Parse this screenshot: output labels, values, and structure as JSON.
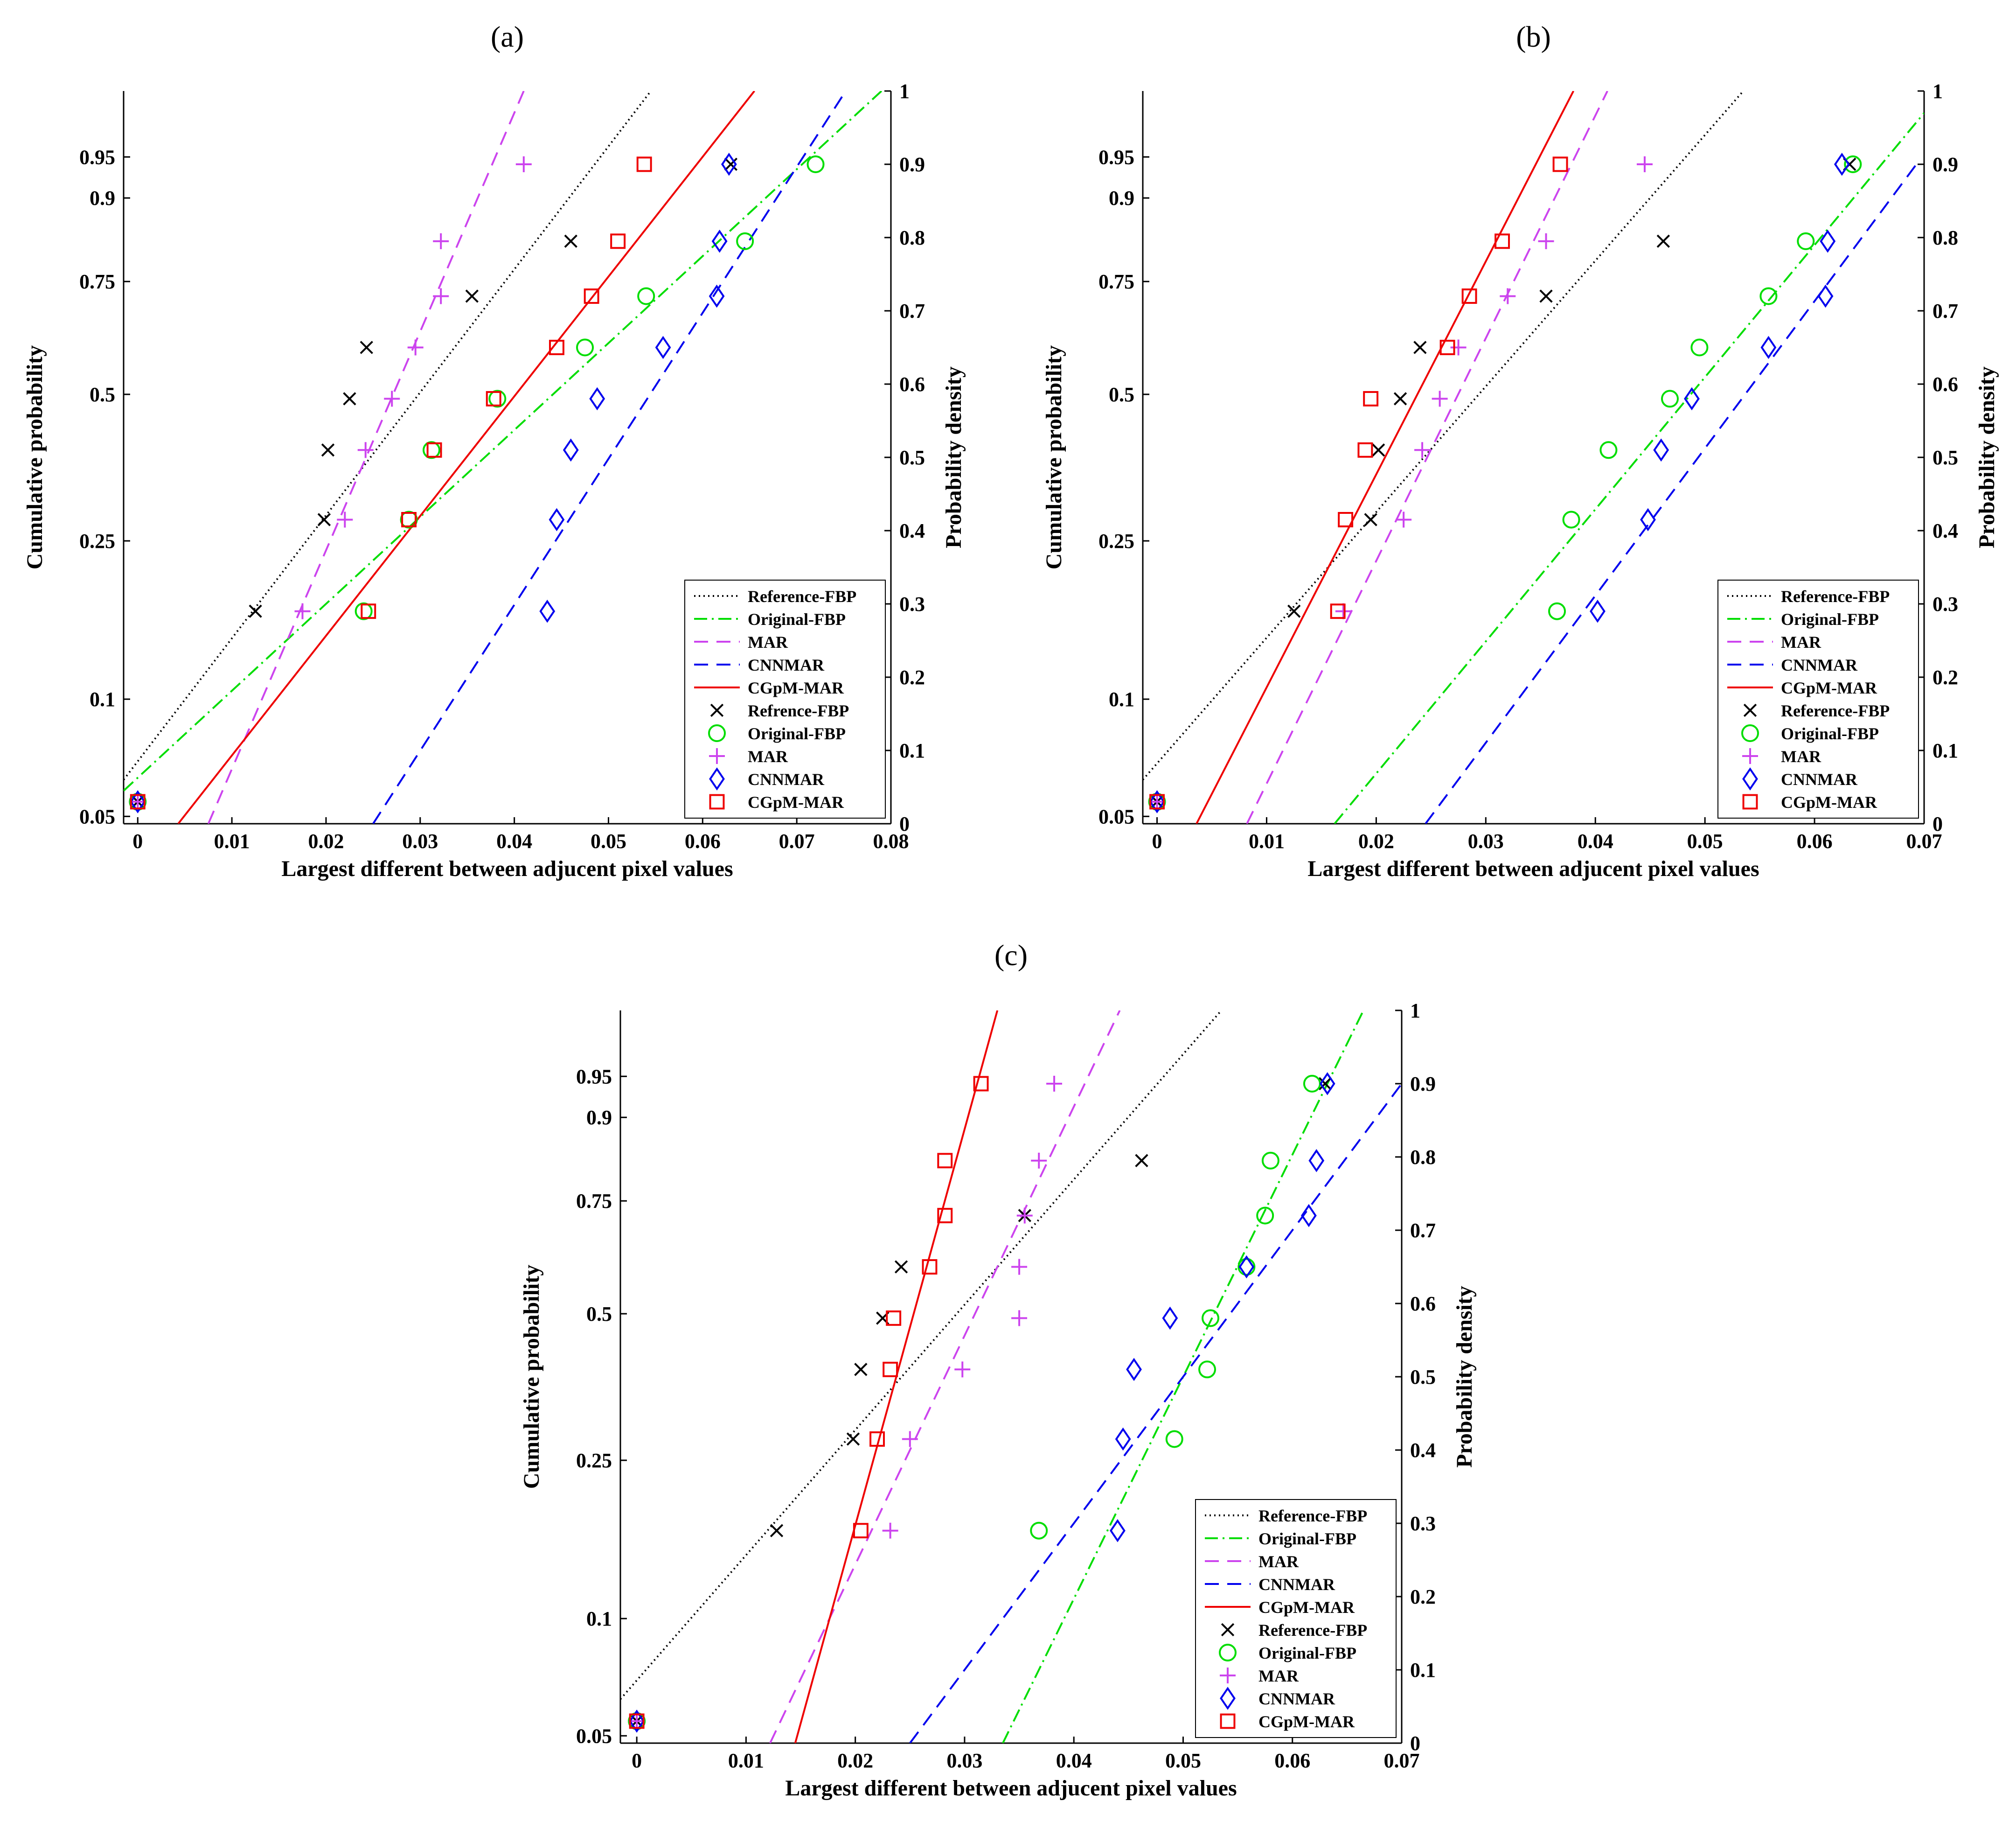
{
  "chart_data": [
    {
      "type": "scatter",
      "title": "(a)",
      "xlabel": "Largest different between adjucent pixel values",
      "ylabel_left": "Cumulative probability",
      "ylabel_right": "Probability density",
      "xlim": [
        -0.0015,
        0.08
      ],
      "x_ticks": [
        "0",
        "0.01",
        "0.02",
        "0.03",
        "0.04",
        "0.05",
        "0.06",
        "0.07",
        "0.08"
      ],
      "left_ticks": [
        "0.05",
        "0.1",
        "0.25",
        "0.5",
        "0.75",
        "0.9",
        "0.95"
      ],
      "right_ticks": [
        "0",
        "0.1",
        "0.2",
        "0.3",
        "0.4",
        "0.5",
        "0.6",
        "0.7",
        "0.8",
        "0.9",
        "1"
      ],
      "legend_position": "bottom-right",
      "fit_lines": [
        {
          "name": "Reference-FBP",
          "style": "dotted",
          "color": "#000000",
          "points": [
            [
              -0.0015,
              0.06
            ],
            [
              0.0545,
              1.0
            ]
          ]
        },
        {
          "name": "Original-FBP",
          "style": "dashdot",
          "color": "#00dd00",
          "points": [
            [
              -0.0015,
              0.045
            ],
            [
              0.079,
              1.0
            ]
          ]
        },
        {
          "name": "MAR",
          "style": "dashed",
          "color": "#cc44ee",
          "points": [
            [
              0.0075,
              0.0
            ],
            [
              0.041,
              1.0
            ]
          ]
        },
        {
          "name": "CNNMAR",
          "style": "dashed",
          "color": "#0000ee",
          "points": [
            [
              0.025,
              0.0
            ],
            [
              0.0752,
              1.0
            ]
          ]
        },
        {
          "name": "CGpM-MAR",
          "style": "solid",
          "color": "#ee0000",
          "points": [
            [
              0.0043,
              0.0
            ],
            [
              0.0655,
              1.0
            ]
          ]
        }
      ],
      "points": [
        {
          "name": "Refrence-FBP",
          "marker": "x",
          "color": "#000000",
          "x": [
            0,
            0.0125,
            0.0198,
            0.0202,
            0.0225,
            0.0243,
            0.0355,
            0.046,
            0.063
          ],
          "y": [
            0.03,
            0.29,
            0.415,
            0.51,
            0.58,
            0.65,
            0.72,
            0.795,
            0.9
          ]
        },
        {
          "name": "Original-FBP",
          "marker": "o",
          "color": "#00dd00",
          "x": [
            0,
            0.024,
            0.0288,
            0.0312,
            0.0382,
            0.0475,
            0.054,
            0.0645,
            0.072
          ],
          "y": [
            0.03,
            0.29,
            0.415,
            0.51,
            0.58,
            0.65,
            0.72,
            0.795,
            0.9
          ]
        },
        {
          "name": "MAR",
          "marker": "+",
          "color": "#cc44ee",
          "x": [
            0,
            0.0175,
            0.022,
            0.0242,
            0.027,
            0.0295,
            0.0322,
            0.0322,
            0.041
          ],
          "y": [
            0.03,
            0.29,
            0.415,
            0.51,
            0.58,
            0.65,
            0.72,
            0.795,
            0.9
          ]
        },
        {
          "name": "CNNMAR",
          "marker": "diamond",
          "color": "#0000ee",
          "x": [
            0,
            0.0435,
            0.0445,
            0.046,
            0.0488,
            0.0558,
            0.0615,
            0.0618,
            0.0628
          ],
          "y": [
            0.03,
            0.29,
            0.415,
            0.51,
            0.58,
            0.65,
            0.72,
            0.795,
            0.9
          ]
        },
        {
          "name": "CGpM-MAR",
          "marker": "square",
          "color": "#ee0000",
          "x": [
            0,
            0.0245,
            0.0288,
            0.0315,
            0.0378,
            0.0445,
            0.0482,
            0.051,
            0.0538
          ],
          "y": [
            0.03,
            0.29,
            0.415,
            0.51,
            0.58,
            0.65,
            0.72,
            0.795,
            0.9
          ]
        }
      ]
    },
    {
      "type": "scatter",
      "title": "(b)",
      "xlabel": "Largest different between adjucent pixel values",
      "ylabel_left": "Cumulative probability",
      "ylabel_right": "Probability density",
      "xlim": [
        -0.0013,
        0.07
      ],
      "x_ticks": [
        "0",
        "0.01",
        "0.02",
        "0.03",
        "0.04",
        "0.05",
        "0.06",
        "0.07"
      ],
      "left_ticks": [
        "0.05",
        "0.1",
        "0.25",
        "0.5",
        "0.75",
        "0.9",
        "0.95"
      ],
      "right_ticks": [
        "0",
        "0.1",
        "0.2",
        "0.3",
        "0.4",
        "0.5",
        "0.6",
        "0.7",
        "0.8",
        "0.9",
        "1"
      ],
      "legend_position": "bottom-right",
      "fit_lines": [
        {
          "name": "Reference-FBP",
          "style": "dotted",
          "color": "#000000",
          "points": [
            [
              -0.0013,
              0.06
            ],
            [
              0.0535,
              1.0
            ]
          ]
        },
        {
          "name": "Original-FBP",
          "style": "dashdot",
          "color": "#00dd00",
          "points": [
            [
              0.0162,
              0.0
            ],
            [
              0.07,
              0.97
            ]
          ]
        },
        {
          "name": "MAR",
          "style": "dashed",
          "color": "#cc44ee",
          "points": [
            [
              0.0082,
              0.0
            ],
            [
              0.0411,
              1.0
            ]
          ]
        },
        {
          "name": "CNNMAR",
          "style": "dashed",
          "color": "#0000ee",
          "points": [
            [
              0.0245,
              0.0
            ],
            [
              0.0693,
              0.9
            ]
          ]
        },
        {
          "name": "CGpM-MAR",
          "style": "solid",
          "color": "#ee0000",
          "points": [
            [
              0.0036,
              0.0
            ],
            [
              0.038,
              1.0
            ]
          ]
        }
      ],
      "points": [
        {
          "name": "Reference-FBP",
          "marker": "x",
          "color": "#000000",
          "x": [
            0,
            0.0125,
            0.0195,
            0.0202,
            0.0222,
            0.024,
            0.0355,
            0.0462,
            0.0632
          ],
          "y": [
            0.03,
            0.29,
            0.415,
            0.51,
            0.58,
            0.65,
            0.72,
            0.795,
            0.9
          ]
        },
        {
          "name": "Original-FBP",
          "marker": "o",
          "color": "#00dd00",
          "x": [
            0,
            0.0365,
            0.0378,
            0.0412,
            0.0468,
            0.0495,
            0.0558,
            0.0592,
            0.0635
          ],
          "y": [
            0.03,
            0.29,
            0.415,
            0.51,
            0.58,
            0.65,
            0.72,
            0.795,
            0.9
          ]
        },
        {
          "name": "MAR",
          "marker": "+",
          "color": "#cc44ee",
          "x": [
            0,
            0.017,
            0.0225,
            0.0242,
            0.0258,
            0.0275,
            0.032,
            0.0355,
            0.0445
          ],
          "y": [
            0.03,
            0.29,
            0.415,
            0.51,
            0.58,
            0.65,
            0.72,
            0.795,
            0.9
          ]
        },
        {
          "name": "CNNMAR",
          "marker": "diamond",
          "color": "#0000ee",
          "x": [
            0,
            0.0402,
            0.0448,
            0.046,
            0.0488,
            0.0558,
            0.061,
            0.0612,
            0.0625
          ],
          "y": [
            0.03,
            0.29,
            0.415,
            0.51,
            0.58,
            0.65,
            0.72,
            0.795,
            0.9
          ]
        },
        {
          "name": "CGpM-MAR",
          "marker": "square",
          "color": "#ee0000",
          "x": [
            0,
            0.0165,
            0.0172,
            0.019,
            0.0195,
            0.0265,
            0.0285,
            0.0315,
            0.0368
          ],
          "y": [
            0.03,
            0.29,
            0.415,
            0.51,
            0.58,
            0.65,
            0.72,
            0.795,
            0.9
          ]
        }
      ]
    },
    {
      "type": "scatter",
      "title": "(c)",
      "xlabel": "Largest different between adjucent pixel values",
      "ylabel_left": "Cumulative probability",
      "ylabel_right": "Probability density",
      "xlim": [
        -0.0015,
        0.07
      ],
      "x_ticks": [
        "0",
        "0.01",
        "0.02",
        "0.03",
        "0.04",
        "0.05",
        "0.06",
        "0.07"
      ],
      "left_ticks": [
        "0.05",
        "0.1",
        "0.25",
        "0.5",
        "0.75",
        "0.9",
        "0.95"
      ],
      "right_ticks": [
        "0",
        "0.1",
        "0.2",
        "0.3",
        "0.4",
        "0.5",
        "0.6",
        "0.7",
        "0.8",
        "0.9",
        "1"
      ],
      "legend_position": "bottom-right",
      "fit_lines": [
        {
          "name": "Reference-FBP",
          "style": "dotted",
          "color": "#000000",
          "points": [
            [
              -0.0015,
              0.06
            ],
            [
              0.0535,
              1.0
            ]
          ]
        },
        {
          "name": "Original-FBP",
          "style": "dashdot",
          "color": "#00dd00",
          "points": [
            [
              0.0335,
              0.0
            ],
            [
              0.0665,
              1.0
            ]
          ]
        },
        {
          "name": "MAR",
          "style": "dashed",
          "color": "#cc44ee",
          "points": [
            [
              0.0122,
              0.0
            ],
            [
              0.0442,
              1.0
            ]
          ]
        },
        {
          "name": "CNNMAR",
          "style": "dashed",
          "color": "#0000ee",
          "points": [
            [
              0.025,
              0.0
            ],
            [
              0.07,
              0.9
            ]
          ]
        },
        {
          "name": "CGpM-MAR",
          "style": "solid",
          "color": "#ee0000",
          "points": [
            [
              0.0145,
              0.0
            ],
            [
              0.033,
              1.0
            ]
          ]
        }
      ],
      "points": [
        {
          "name": "Reference-FBP",
          "marker": "x",
          "color": "#000000",
          "x": [
            0,
            0.0128,
            0.0198,
            0.0205,
            0.0225,
            0.0242,
            0.0355,
            0.0462,
            0.063
          ],
          "y": [
            0.03,
            0.29,
            0.415,
            0.51,
            0.58,
            0.65,
            0.72,
            0.795,
            0.9
          ]
        },
        {
          "name": "Original-FBP",
          "marker": "o",
          "color": "#00dd00",
          "x": [
            0,
            0.0368,
            0.0492,
            0.0522,
            0.0525,
            0.0558,
            0.0575,
            0.058,
            0.0618
          ],
          "y": [
            0.03,
            0.29,
            0.415,
            0.51,
            0.58,
            0.65,
            0.72,
            0.795,
            0.9
          ]
        },
        {
          "name": "MAR",
          "marker": "+",
          "color": "#cc44ee",
          "x": [
            0,
            0.0232,
            0.025,
            0.0298,
            0.035,
            0.035,
            0.0355,
            0.0368,
            0.0382
          ],
          "y": [
            0.03,
            0.29,
            0.415,
            0.51,
            0.58,
            0.65,
            0.72,
            0.795,
            0.9
          ]
        },
        {
          "name": "CNNMAR",
          "marker": "diamond",
          "color": "#0000ee",
          "x": [
            0,
            0.044,
            0.0445,
            0.0455,
            0.0488,
            0.0558,
            0.0615,
            0.0622,
            0.0632
          ],
          "y": [
            0.03,
            0.29,
            0.415,
            0.51,
            0.58,
            0.65,
            0.72,
            0.795,
            0.9
          ]
        },
        {
          "name": "CGpM-MAR",
          "marker": "square",
          "color": "#ee0000",
          "x": [
            0,
            0.0205,
            0.022,
            0.0232,
            0.0235,
            0.0268,
            0.0282,
            0.0282,
            0.0315
          ],
          "y": [
            0.03,
            0.29,
            0.415,
            0.51,
            0.58,
            0.65,
            0.72,
            0.795,
            0.9
          ]
        }
      ]
    }
  ]
}
